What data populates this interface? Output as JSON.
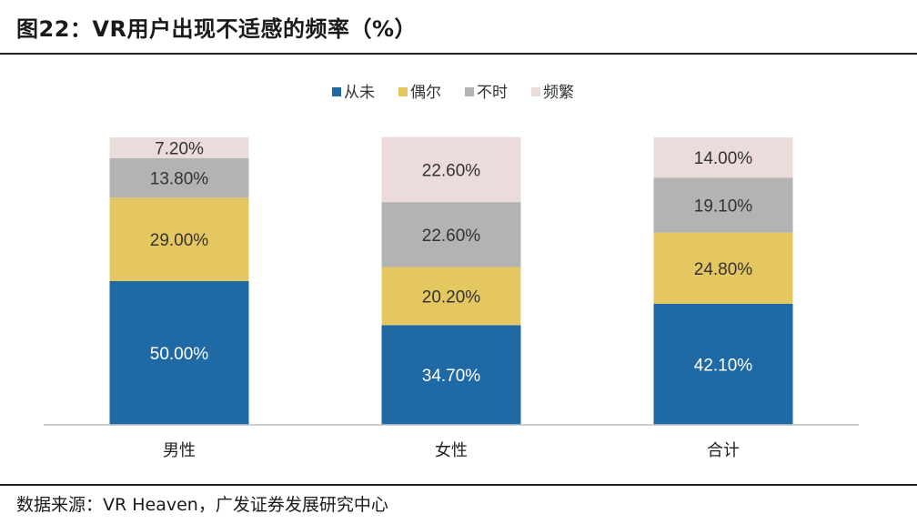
{
  "title": "图22：VR用户出现不适感的频率（%）",
  "source": "数据来源：VR Heaven，广发证券发展研究中心",
  "chart_data": {
    "type": "bar",
    "stacked": true,
    "categories": [
      "男性",
      "女性",
      "合计"
    ],
    "series": [
      {
        "name": "从未",
        "color": "#1f6aa5",
        "values": [
          50.0,
          34.7,
          42.1
        ],
        "labels": [
          "50.00%",
          "34.70%",
          "42.10%"
        ]
      },
      {
        "name": "偶尔",
        "color": "#e5c762",
        "values": [
          29.0,
          20.2,
          24.8
        ],
        "labels": [
          "29.00%",
          "20.20%",
          "24.80%"
        ]
      },
      {
        "name": "不时",
        "color": "#b3b3b3",
        "values": [
          13.8,
          22.6,
          19.1
        ],
        "labels": [
          "13.80%",
          "22.60%",
          "19.10%"
        ]
      },
      {
        "name": "频繁",
        "color": "#ebdbdb",
        "values": [
          7.2,
          22.6,
          14.0
        ],
        "labels": [
          "7.20%",
          "22.60%",
          "14.00%"
        ]
      }
    ],
    "ylim": [
      0,
      100
    ],
    "legend_position": "top-center",
    "grid": false
  }
}
